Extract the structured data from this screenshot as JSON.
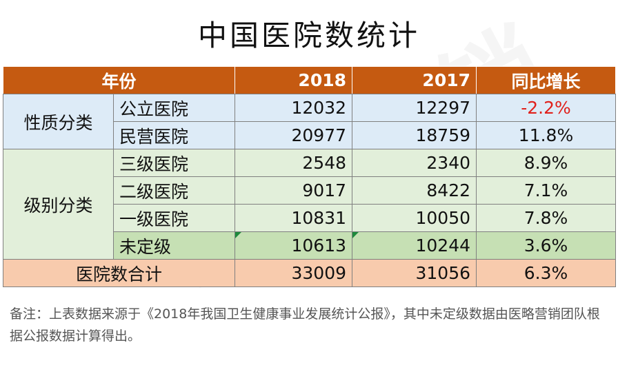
{
  "title": "中国医院数统计",
  "watermark": "医略营销",
  "header": {
    "category": "年份",
    "col_2018": "2018",
    "col_2017": "2017",
    "growth": "同比增长"
  },
  "groups": {
    "nature": "性质分类",
    "level": "级别分类"
  },
  "rows": [
    {
      "label": "公立医院",
      "v2018": "12032",
      "v2017": "12297",
      "growth": "-2.2%"
    },
    {
      "label": "民营医院",
      "v2018": "20977",
      "v2017": "18759",
      "growth": "11.8%"
    },
    {
      "label": "三级医院",
      "v2018": "2548",
      "v2017": "2340",
      "growth": "8.9%"
    },
    {
      "label": "二级医院",
      "v2018": "9017",
      "v2017": "8422",
      "growth": "7.1%"
    },
    {
      "label": "一级医院",
      "v2018": "10831",
      "v2017": "10050",
      "growth": "7.8%"
    },
    {
      "label": "未定级",
      "v2018": "10613",
      "v2017": "10244",
      "growth": "3.6%"
    }
  ],
  "total": {
    "label": "医院数合计",
    "v2018": "33009",
    "v2017": "31056",
    "growth": "6.3%"
  },
  "footnote": "备注：上表数据来源于《2018年我国卫生健康事业发展统计公报》，其中未定级数据由医略营销团队根据公报数据计算得出。",
  "colors": {
    "header": "#c55a11",
    "nature_bg": "#ddebf7",
    "level_bg": "#e2efda",
    "total_bg": "#f8cbad",
    "negative": "#e0201b"
  }
}
